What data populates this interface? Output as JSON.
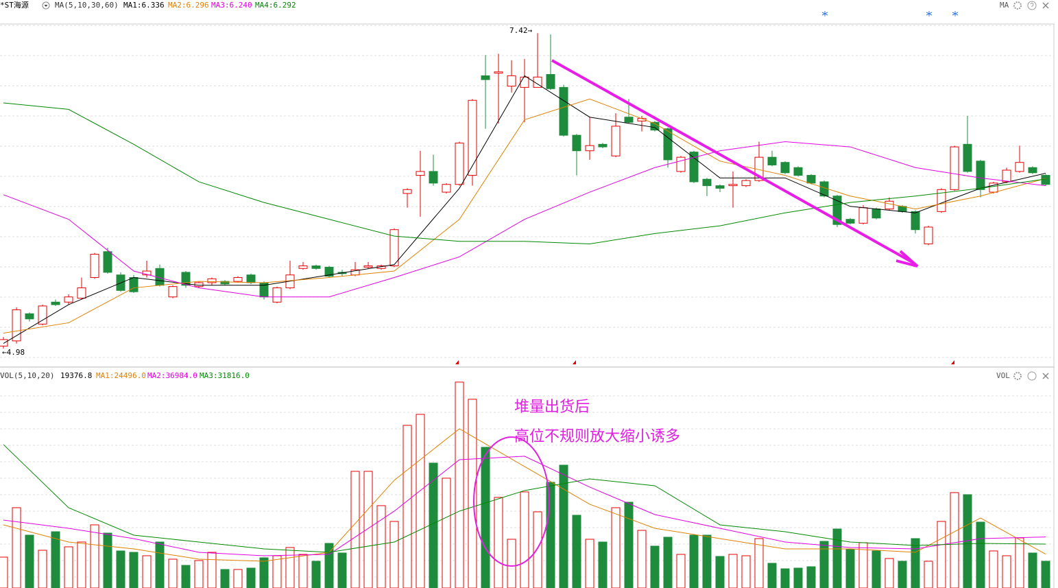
{
  "header": {
    "title": "*ST海源",
    "ma_menu": "MA(5,10,30,60)",
    "indicator": "MA",
    "vol_indicator": "VOL"
  },
  "annotations": {
    "high_label": "7.42→",
    "low_label": "←4.98",
    "note1": "堆量出货后",
    "note2": "高位不规则放大缩小诱多"
  },
  "chart_data": [
    {
      "type": "candlestick",
      "up_color": "#e60000",
      "down_color": "#1e8c3c",
      "ylim": [
        4.88,
        7.49
      ],
      "grid": true,
      "open": [
        5.0,
        5.04,
        5.25,
        5.17,
        5.34,
        5.34,
        5.37,
        5.53,
        5.73,
        5.55,
        5.53,
        5.55,
        5.6,
        5.38,
        5.57,
        5.46,
        5.49,
        5.5,
        5.5,
        5.55,
        5.49,
        5.34,
        5.45,
        5.6,
        5.62,
        5.61,
        5.57,
        5.55,
        5.61,
        5.6,
        5.62,
        6.18,
        6.32,
        6.35,
        6.19,
        6.25,
        6.32,
        7.09,
        7.11,
        7.01,
        7.0,
        7.0,
        7.1,
        7.0,
        6.63,
        6.51,
        6.56,
        6.47,
        6.77,
        6.74,
        6.73,
        6.68,
        6.35,
        6.5,
        6.29,
        6.24,
        6.24,
        6.24,
        6.28,
        6.46,
        6.42,
        6.38,
        6.32,
        6.27,
        6.16,
        5.98,
        5.95,
        6.06,
        6.06,
        6.08,
        6.04,
        5.79,
        6.04,
        6.21,
        6.56,
        6.43,
        6.19,
        6.27,
        6.35,
        6.38,
        6.32
      ],
      "high": [
        5.07,
        5.3,
        5.26,
        5.32,
        5.36,
        5.4,
        5.53,
        5.72,
        5.76,
        5.57,
        5.55,
        5.66,
        5.63,
        5.47,
        5.58,
        5.5,
        5.53,
        5.51,
        5.54,
        5.56,
        5.5,
        5.46,
        5.66,
        5.65,
        5.63,
        5.62,
        5.59,
        5.65,
        5.65,
        5.63,
        5.91,
        6.22,
        6.51,
        6.48,
        6.26,
        6.58,
        6.91,
        7.25,
        7.26,
        7.21,
        7.22,
        7.42,
        7.41,
        7.02,
        6.64,
        6.77,
        6.57,
        6.8,
        6.91,
        6.78,
        6.74,
        6.69,
        6.47,
        6.51,
        6.3,
        6.25,
        6.35,
        6.29,
        6.58,
        6.51,
        6.43,
        6.39,
        6.33,
        6.28,
        6.17,
        5.99,
        6.09,
        6.07,
        6.15,
        6.09,
        6.05,
        5.93,
        6.22,
        6.55,
        6.78,
        6.44,
        6.27,
        6.38,
        6.55,
        6.39,
        6.33
      ],
      "low": [
        4.98,
        5.02,
        5.19,
        5.16,
        5.31,
        5.32,
        5.36,
        5.52,
        5.56,
        5.42,
        5.41,
        5.53,
        5.46,
        5.37,
        5.45,
        5.45,
        5.47,
        5.47,
        5.49,
        5.48,
        5.36,
        5.33,
        5.44,
        5.59,
        5.59,
        5.53,
        5.54,
        5.54,
        5.6,
        5.59,
        5.61,
        6.07,
        6.0,
        6.24,
        6.18,
        6.24,
        6.24,
        6.68,
        6.72,
        6.96,
        6.73,
        7.0,
        6.98,
        6.62,
        6.32,
        6.44,
        6.53,
        6.46,
        6.72,
        6.66,
        6.66,
        6.38,
        6.34,
        6.26,
        6.16,
        6.19,
        6.07,
        6.23,
        6.27,
        6.39,
        6.33,
        6.31,
        6.25,
        6.15,
        5.92,
        5.94,
        5.94,
        5.98,
        6.05,
        6.03,
        5.87,
        5.78,
        6.03,
        6.2,
        6.34,
        6.15,
        6.18,
        6.26,
        6.34,
        6.33,
        6.24
      ],
      "close": [
        5.05,
        5.28,
        5.21,
        5.31,
        5.32,
        5.38,
        5.45,
        5.71,
        5.57,
        5.43,
        5.42,
        5.58,
        5.47,
        5.46,
        5.47,
        5.49,
        5.52,
        5.48,
        5.53,
        5.49,
        5.38,
        5.45,
        5.55,
        5.62,
        5.6,
        5.54,
        5.56,
        5.59,
        5.62,
        5.62,
        5.9,
        6.21,
        6.35,
        6.26,
        6.25,
        6.57,
        6.9,
        7.06,
        7.12,
        7.09,
        7.08,
        7.08,
        6.99,
        6.63,
        6.51,
        6.55,
        6.54,
        6.7,
        6.73,
        6.76,
        6.67,
        6.44,
        6.46,
        6.27,
        6.24,
        6.22,
        6.25,
        6.28,
        6.46,
        6.4,
        6.34,
        6.32,
        6.26,
        6.16,
        5.94,
        5.95,
        6.07,
        5.99,
        6.12,
        6.04,
        5.9,
        5.92,
        6.21,
        6.54,
        6.35,
        6.21,
        6.26,
        6.36,
        6.42,
        6.34,
        6.25
      ],
      "ma_x": [
        0,
        5,
        10,
        15,
        20,
        25,
        30,
        35,
        40,
        45,
        50,
        55,
        60,
        65,
        70,
        75,
        80
      ],
      "series": [
        {
          "name": "MA1:6.336",
          "color": "#000000",
          "values": [
            5.02,
            5.32,
            5.53,
            5.47,
            5.47,
            5.55,
            5.63,
            6.22,
            7.09,
            6.77,
            6.69,
            6.3,
            6.3,
            6.08,
            6.03,
            6.22,
            6.336
          ]
        },
        {
          "name": "MA2:6.296",
          "color": "#e08000",
          "values": [
            5.1,
            5.18,
            5.45,
            5.5,
            5.49,
            5.53,
            5.58,
            5.98,
            6.75,
            6.91,
            6.72,
            6.43,
            6.32,
            6.16,
            6.06,
            6.16,
            6.296
          ]
        },
        {
          "name": "MA3:6.240",
          "color": "#e000e0",
          "values": [
            6.17,
            5.98,
            5.58,
            5.45,
            5.38,
            5.38,
            5.53,
            5.69,
            5.98,
            6.19,
            6.38,
            6.51,
            6.58,
            6.54,
            6.38,
            6.3,
            6.24
          ]
        },
        {
          "name": "MA4:6.292",
          "color": "#008800",
          "values": [
            6.88,
            6.83,
            6.56,
            6.27,
            6.11,
            5.98,
            5.85,
            5.81,
            5.81,
            5.79,
            5.87,
            5.93,
            6.03,
            6.11,
            6.16,
            6.22,
            6.292
          ]
        }
      ]
    },
    {
      "type": "volume",
      "title": "VOL(5,10,20)",
      "last": "19376.8",
      "ylim": [
        0,
        157500
      ],
      "grid": true,
      "values": [
        22365,
        58149,
        38269,
        27335,
        40754,
        29820,
        33299,
        45724,
        39760,
        26838,
        25844,
        23359,
        33299,
        20874,
        16401,
        19880,
        25844,
        13419,
        13419,
        14413,
        21868,
        23359,
        29323,
        24353,
        19383,
        32305,
        25347,
        84490,
        84490,
        59640,
        48209,
        117789,
        125741,
        90454,
        79520,
        149100,
        136675,
        101885,
        65604,
        35287,
        69580,
        55167,
        76538,
        88963,
        52682,
        35287,
        33299,
        58149,
        62125,
        41748,
        30317,
        36778,
        24353,
        38269,
        38269,
        22862,
        24353,
        23359,
        35784,
        17892,
        13916,
        14413,
        15407,
        33796,
        42742,
        27832,
        32802,
        26838,
        21371,
        19383,
        35784,
        19383,
        48209,
        69083,
        67592,
        47712,
        26838,
        23359,
        36281,
        25347,
        19376.8
      ],
      "ma_x": [
        0,
        5,
        10,
        15,
        20,
        25,
        30,
        35,
        40,
        45,
        50,
        55,
        60,
        65,
        70,
        75,
        80
      ],
      "series": [
        {
          "name": "MA1:24496.0",
          "color": "#e08000",
          "values": [
            45724,
            33299,
            28329,
            20874,
            19383,
            25844,
            78029,
            115304,
            87969,
            60634,
            43239,
            35784,
            28329,
            28329,
            25844,
            50694,
            24496
          ]
        },
        {
          "name": "MA2:36984.0",
          "color": "#e000e0",
          "values": [
            49203,
            43239,
            35784,
            25844,
            23359,
            24353,
            55664,
            92939,
            95424,
            73059,
            53179,
            43239,
            33299,
            29323,
            28329,
            35784,
            36984
          ]
        },
        {
          "name": "MA3:31816.0",
          "color": "#008800",
          "values": [
            103873,
            58149,
            38269,
            33299,
            28329,
            25844,
            33299,
            55664,
            70574,
            79023,
            74053,
            45724,
            40754,
            33299,
            30814,
            32305,
            31816
          ]
        }
      ]
    }
  ]
}
